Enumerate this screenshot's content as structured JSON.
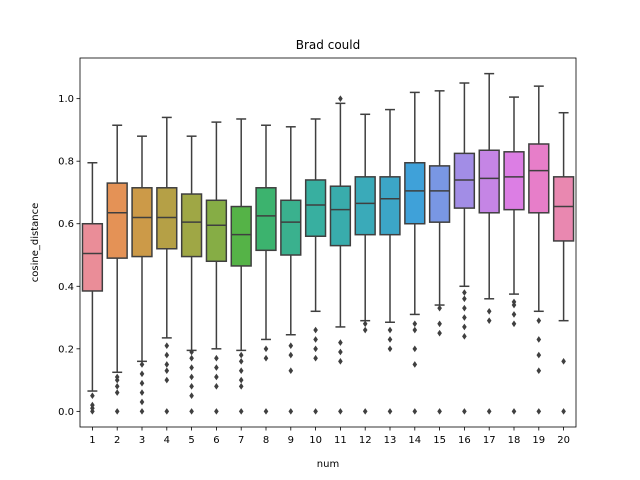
{
  "chart_data": {
    "type": "box",
    "title": "Brad could",
    "xlabel": "num",
    "ylabel": "cosine_distance",
    "ylim": [
      -0.05,
      1.13
    ],
    "yticks": [
      "0.0",
      "0.2",
      "0.4",
      "0.6",
      "0.8",
      "1.0"
    ],
    "ytick_values": [
      0.0,
      0.2,
      0.4,
      0.6,
      0.8,
      1.0
    ],
    "grid": false,
    "colors": [
      "#ea8d98",
      "#e49256",
      "#cc9a48",
      "#b5a046",
      "#9fa745",
      "#86ad45",
      "#55b347",
      "#3cb36e",
      "#3ab18e",
      "#38afa0",
      "#39acac",
      "#3aaab9",
      "#3ca6c7",
      "#3fa1d9",
      "#7997e4",
      "#a28de6",
      "#c585e5",
      "#dc7ee4",
      "#e77ec9",
      "#e988b0"
    ],
    "categories": [
      "1",
      "2",
      "3",
      "4",
      "5",
      "6",
      "7",
      "8",
      "9",
      "10",
      "11",
      "12",
      "13",
      "14",
      "15",
      "16",
      "17",
      "18",
      "19",
      "20"
    ],
    "boxes": [
      {
        "q1": 0.385,
        "median": 0.505,
        "q3": 0.6,
        "whislo": 0.065,
        "whishi": 0.795,
        "fliers": [
          0.0,
          0.01,
          0.02,
          0.05
        ]
      },
      {
        "q1": 0.49,
        "median": 0.635,
        "q3": 0.73,
        "whislo": 0.125,
        "whishi": 0.915,
        "fliers": [
          0.0,
          0.06,
          0.08,
          0.1,
          0.11
        ]
      },
      {
        "q1": 0.495,
        "median": 0.62,
        "q3": 0.715,
        "whislo": 0.16,
        "whishi": 0.88,
        "fliers": [
          0.0,
          0.03,
          0.06,
          0.09,
          0.12,
          0.15
        ]
      },
      {
        "q1": 0.52,
        "median": 0.62,
        "q3": 0.715,
        "whislo": 0.235,
        "whishi": 0.94,
        "fliers": [
          0.0,
          0.1,
          0.13,
          0.15,
          0.18,
          0.21
        ]
      },
      {
        "q1": 0.495,
        "median": 0.605,
        "q3": 0.695,
        "whislo": 0.195,
        "whishi": 0.88,
        "fliers": [
          0.0,
          0.05,
          0.08,
          0.11,
          0.14,
          0.17,
          0.19
        ]
      },
      {
        "q1": 0.48,
        "median": 0.595,
        "q3": 0.675,
        "whislo": 0.2,
        "whishi": 0.925,
        "fliers": [
          0.0,
          0.08,
          0.11,
          0.14,
          0.17
        ]
      },
      {
        "q1": 0.465,
        "median": 0.565,
        "q3": 0.655,
        "whislo": 0.195,
        "whishi": 0.935,
        "fliers": [
          0.0,
          0.08,
          0.1,
          0.13,
          0.16,
          0.18
        ]
      },
      {
        "q1": 0.515,
        "median": 0.625,
        "q3": 0.715,
        "whislo": 0.23,
        "whishi": 0.915,
        "fliers": [
          0.0,
          0.17,
          0.2
        ]
      },
      {
        "q1": 0.5,
        "median": 0.605,
        "q3": 0.675,
        "whislo": 0.245,
        "whishi": 0.91,
        "fliers": [
          0.0,
          0.13,
          0.18,
          0.21
        ]
      },
      {
        "q1": 0.56,
        "median": 0.66,
        "q3": 0.74,
        "whislo": 0.32,
        "whishi": 0.935,
        "fliers": [
          0.0,
          0.17,
          0.2,
          0.23,
          0.26
        ]
      },
      {
        "q1": 0.53,
        "median": 0.645,
        "q3": 0.72,
        "whislo": 0.27,
        "whishi": 0.985,
        "fliers": [
          0.0,
          0.16,
          0.19,
          0.22,
          1.0
        ]
      },
      {
        "q1": 0.565,
        "median": 0.665,
        "q3": 0.75,
        "whislo": 0.29,
        "whishi": 0.95,
        "fliers": [
          0.0,
          0.26,
          0.28
        ]
      },
      {
        "q1": 0.565,
        "median": 0.68,
        "q3": 0.75,
        "whislo": 0.285,
        "whishi": 0.965,
        "fliers": [
          0.0,
          0.2,
          0.23,
          0.26
        ]
      },
      {
        "q1": 0.6,
        "median": 0.705,
        "q3": 0.795,
        "whislo": 0.31,
        "whishi": 1.02,
        "fliers": [
          0.0,
          0.15,
          0.2,
          0.26,
          0.28
        ]
      },
      {
        "q1": 0.605,
        "median": 0.705,
        "q3": 0.785,
        "whislo": 0.34,
        "whishi": 1.025,
        "fliers": [
          0.0,
          0.25,
          0.28,
          0.33
        ]
      },
      {
        "q1": 0.65,
        "median": 0.74,
        "q3": 0.825,
        "whislo": 0.4,
        "whishi": 1.05,
        "fliers": [
          0.0,
          0.24,
          0.27,
          0.3,
          0.33,
          0.36,
          0.38
        ]
      },
      {
        "q1": 0.635,
        "median": 0.745,
        "q3": 0.835,
        "whislo": 0.36,
        "whishi": 1.08,
        "fliers": [
          0.0,
          0.29,
          0.32
        ]
      },
      {
        "q1": 0.645,
        "median": 0.75,
        "q3": 0.83,
        "whislo": 0.375,
        "whishi": 1.005,
        "fliers": [
          0.0,
          0.28,
          0.31,
          0.34,
          0.35
        ]
      },
      {
        "q1": 0.635,
        "median": 0.77,
        "q3": 0.855,
        "whislo": 0.32,
        "whishi": 1.04,
        "fliers": [
          0.0,
          0.13,
          0.18,
          0.23,
          0.29
        ]
      },
      {
        "q1": 0.545,
        "median": 0.655,
        "q3": 0.75,
        "whislo": 0.29,
        "whishi": 0.955,
        "fliers": [
          0.0,
          0.16
        ]
      }
    ]
  }
}
